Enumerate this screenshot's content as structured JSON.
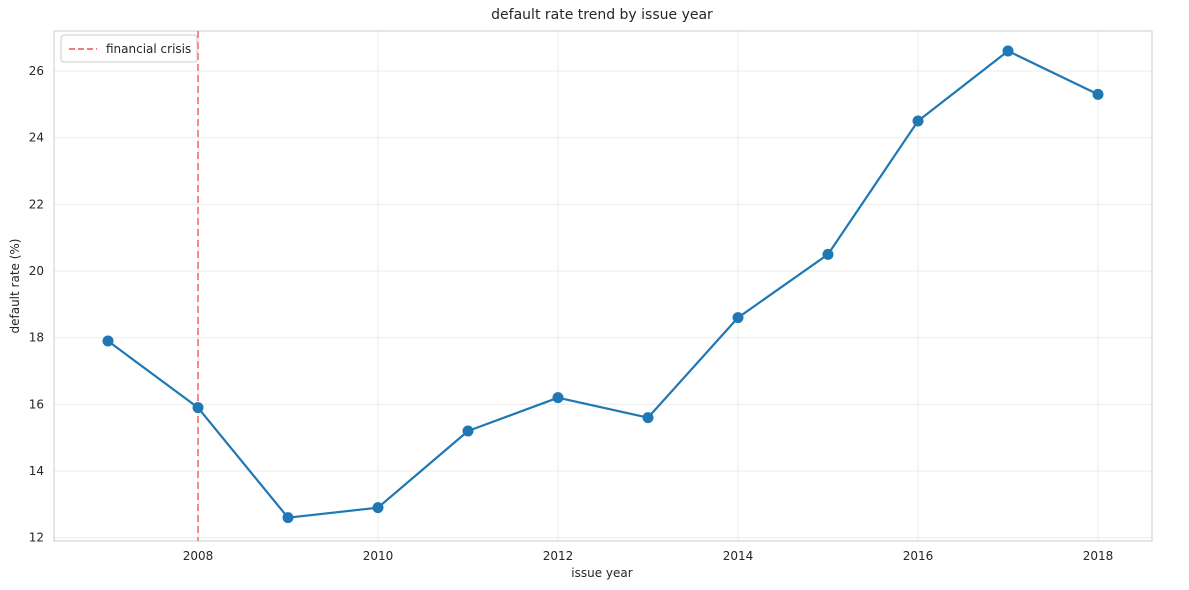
{
  "chart_data": {
    "type": "line",
    "title": "default rate trend by issue year",
    "xlabel": "issue year",
    "ylabel": "default rate (%)",
    "xlim": [
      2006.4,
      2018.6
    ],
    "ylim": [
      11.9,
      27.2
    ],
    "x_ticks": [
      2008,
      2010,
      2012,
      2014,
      2016,
      2018
    ],
    "y_ticks": [
      12,
      14,
      16,
      18,
      20,
      22,
      24,
      26
    ],
    "grid": true,
    "legend_position": "top-left",
    "series": [
      {
        "color": "#1f77b4",
        "x": [
          2007,
          2008,
          2009,
          2010,
          2011,
          2012,
          2013,
          2014,
          2015,
          2016,
          2017,
          2018
        ],
        "y": [
          17.9,
          15.9,
          12.6,
          12.9,
          15.2,
          16.2,
          15.6,
          18.6,
          20.5,
          24.5,
          26.6,
          25.3
        ]
      }
    ],
    "reference_lines": [
      {
        "name": "financial crisis",
        "x": 2008,
        "color": "#f08080",
        "style": "dashed"
      }
    ]
  }
}
